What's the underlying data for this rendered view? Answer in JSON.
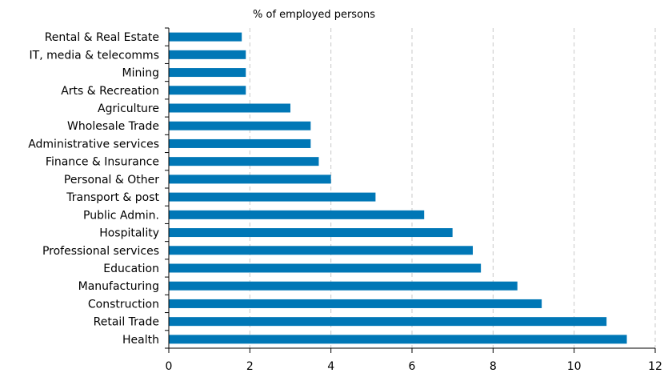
{
  "chart_data": {
    "type": "bar",
    "orientation": "horizontal",
    "unit_label": "% of employed persons",
    "categories": [
      "Rental & Real Estate",
      "IT, media & telecomms",
      "Mining",
      "Arts & Recreation",
      "Agriculture",
      "Wholesale Trade",
      "Administrative services",
      "Finance & Insurance",
      "Personal & Other",
      "Transport & post",
      "Public Admin.",
      "Hospitality",
      "Professional services",
      "Education",
      "Manufacturing",
      "Construction",
      "Retail Trade",
      "Health"
    ],
    "values": [
      1.8,
      1.9,
      1.9,
      1.9,
      3.0,
      3.5,
      3.5,
      3.7,
      4.0,
      5.1,
      6.3,
      7.0,
      7.5,
      7.7,
      8.6,
      9.2,
      10.8,
      11.3
    ],
    "xlim": [
      0,
      12
    ],
    "x_ticks": [
      0,
      2,
      4,
      6,
      8,
      10,
      12
    ],
    "grid": "vertical dashed",
    "bar_color": "#0077b6",
    "grid_color": "#c8c8c8"
  }
}
